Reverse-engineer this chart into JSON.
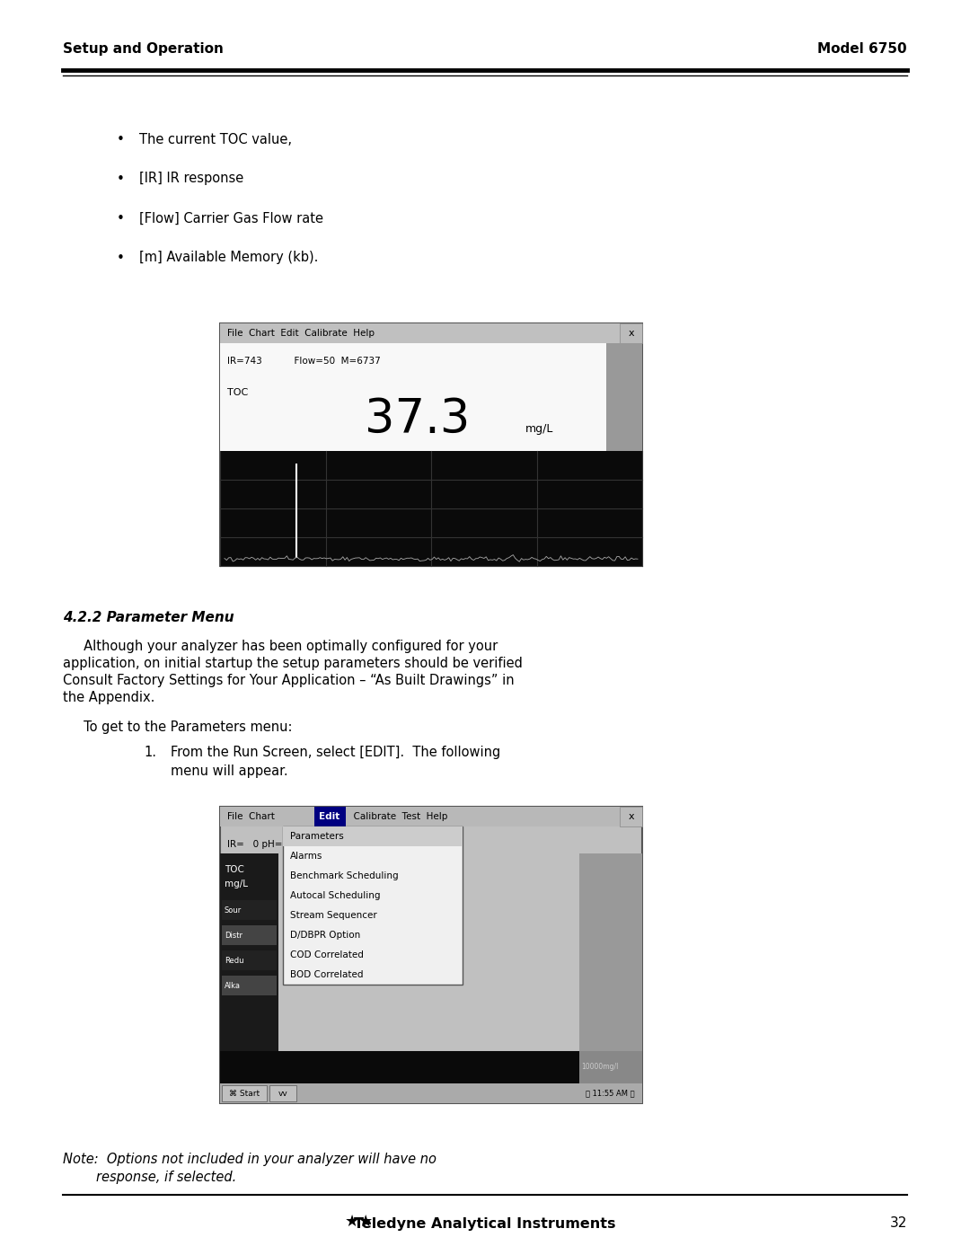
{
  "page_width": 10.8,
  "page_height": 13.97,
  "bg_color": "#ffffff",
  "header_left": "Setup and Operation",
  "header_right": "Model 6750",
  "header_font_size": 11,
  "footer_text": "Teledyne Analytical Instruments",
  "footer_page": "32",
  "bullet_items": [
    "The current TOC value,",
    "[IR] IR response",
    "[Flow] Carrier Gas Flow rate",
    "[m] Available Memory (kb)."
  ],
  "section_title": "4.2.2 Parameter Menu",
  "body_text1_line1": "     Although your analyzer has been optimally configured for your",
  "body_text1_line2": "application, on initial startup the setup parameters should be verified",
  "body_text1_line3": "Consult Factory Settings for Your Application – “As Built Drawings” in",
  "body_text1_line4": "the Appendix.",
  "body_text2": "     To get to the Parameters menu:",
  "step_text1": "From the Run Screen, select [EDIT].  The following",
  "step_text2": "menu will appear.",
  "note_text_1": "Note:  Options not included in your analyzer will have no",
  "note_text_2": "        response, if selected.",
  "font_size_body": 10.5,
  "font_size_note": 10.5,
  "font_size_section": 11,
  "screen1_menu": "File  Chart  Edit  Calibrate  Help",
  "screen1_status": "IR=743           Flow=50  M=6737",
  "screen1_toc_label": "TOC",
  "screen1_value": "37.3",
  "screen1_unit": "mg/L",
  "screen2_menu_left": "File  Chart  ",
  "screen2_menu_edit": "Edit",
  "screen2_menu_right": "  Calibrate  Test  Help",
  "screen2_status": "IR=   0 pH=0.",
  "screen2_toc": "TOC",
  "screen2_mgl": "mg/L",
  "screen2_left_labels": [
    "Sour",
    "Distr",
    "Redu",
    "Alka"
  ],
  "screen2_menu_items": [
    "Parameters",
    "Alarms",
    "Benchmark Scheduling",
    "Autocal Scheduling",
    "Stream Sequencer",
    "D/DBPR Option",
    "COD Correlated",
    "BOD Correlated"
  ],
  "screen2_taskbar_left": "   Start  vv",
  "screen2_taskbar_right": "11:55 AM"
}
